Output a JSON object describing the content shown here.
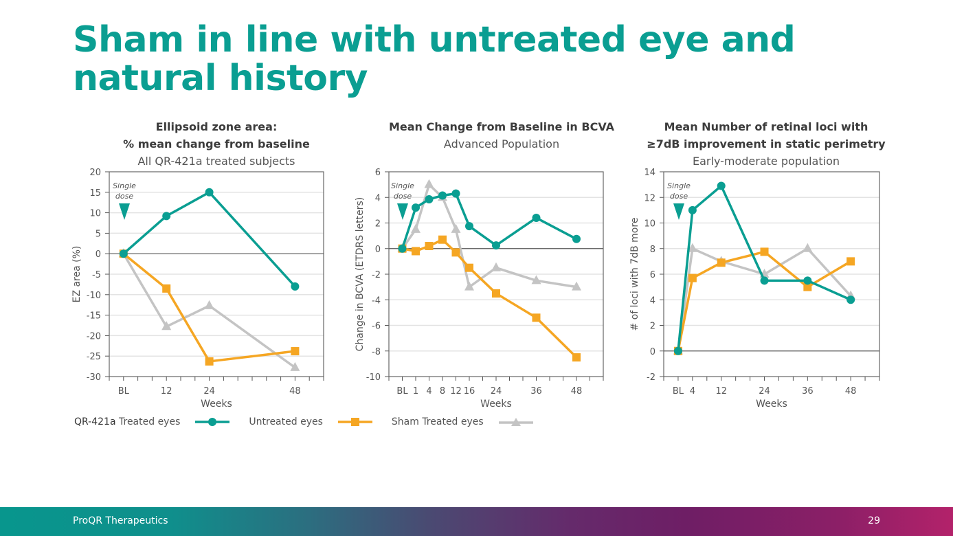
{
  "slide": {
    "title": "Sham in line with untreated eye and natural history",
    "footer_company": "ProQR Therapeutics",
    "page_number": "29",
    "colors": {
      "title": "#0a9e92",
      "treated": "#0a9e92",
      "untreated": "#f5a623",
      "sham": "#c4c4c4"
    }
  },
  "legend": [
    {
      "prefix": "QR-421a",
      "label": " Treated eyes",
      "series": "treated",
      "marker": "circle"
    },
    {
      "prefix": "",
      "label": "Untreated eyes",
      "series": "untreated",
      "marker": "square"
    },
    {
      "prefix": "",
      "label": "Sham Treated eyes",
      "series": "sham",
      "marker": "triangle"
    }
  ],
  "chart_data": [
    {
      "type": "line",
      "title": "Ellipsoid zone area:",
      "title2": "% mean change from baseline",
      "subtitle": "All QR-421a treated subjects",
      "xlabel": "Weeks",
      "ylabel": "EZ area (%)",
      "annotation": "Single dose",
      "ylim": [
        -30,
        20
      ],
      "yticks": [
        20,
        15,
        10,
        5,
        0,
        -5,
        -10,
        -15,
        -20,
        -25,
        -30
      ],
      "x_tick_labels": [
        "BL",
        "12",
        "24",
        "48"
      ],
      "x_tick_weeks": [
        0,
        12,
        24,
        48
      ],
      "x_weeks": [
        0,
        12,
        24,
        48
      ],
      "series": [
        {
          "name": "QR-421a Treated eyes",
          "key": "treated",
          "values": [
            0,
            9.2,
            15,
            -8
          ]
        },
        {
          "name": "Untreated eyes",
          "key": "untreated",
          "values": [
            0,
            -8.5,
            -26.3,
            -23.8
          ]
        },
        {
          "name": "Sham Treated eyes",
          "key": "sham",
          "values": [
            0,
            -17.8,
            -12.7,
            -27.8
          ]
        }
      ],
      "grid": true
    },
    {
      "type": "line",
      "title": "Mean Change from Baseline in BCVA",
      "title2": "",
      "subtitle": "Advanced Population",
      "xlabel": "Weeks",
      "ylabel": "Change in BCVA (ETDRS letters)",
      "annotation": "Single dose",
      "ylim": [
        -10,
        6
      ],
      "yticks": [
        6,
        4,
        2,
        0,
        -2,
        -4,
        -6,
        -8,
        -10
      ],
      "x_tick_labels": [
        "BL",
        "1",
        "4",
        "8",
        "12",
        "16",
        "24",
        "36",
        "48"
      ],
      "x_weeks": [
        0,
        1,
        4,
        8,
        12,
        16,
        24,
        36,
        48
      ],
      "series": [
        {
          "name": "QR-421a Treated eyes",
          "key": "treated",
          "values": [
            0,
            3.2,
            3.85,
            4.15,
            4.3,
            1.75,
            0.25,
            2.4,
            0.75
          ]
        },
        {
          "name": "Untreated eyes",
          "key": "untreated",
          "values": [
            0,
            -0.2,
            0.2,
            0.7,
            -0.3,
            -1.5,
            -3.5,
            -5.4,
            -8.5
          ]
        },
        {
          "name": "Sham Treated eyes",
          "key": "sham",
          "values": [
            0,
            1.5,
            5.0,
            4.0,
            1.5,
            -3.0,
            -1.5,
            -2.5,
            -3.0
          ]
        }
      ],
      "grid": true
    },
    {
      "type": "line",
      "title": "Mean Number of retinal loci with",
      "title2": "≥7dB improvement in static perimetry",
      "subtitle": "Early-moderate population",
      "xlabel": "Weeks",
      "ylabel": "# of loci with 7dB more",
      "annotation": "Single dose",
      "ylim": [
        -2,
        14
      ],
      "yticks": [
        14,
        12,
        10,
        8,
        6,
        4,
        2,
        0,
        -2
      ],
      "x_tick_labels": [
        "BL",
        "4",
        "12",
        "24",
        "36",
        "48"
      ],
      "x_weeks": [
        0,
        4,
        12,
        24,
        36,
        48
      ],
      "series": [
        {
          "name": "QR-421a Treated eyes",
          "key": "treated",
          "values": [
            0,
            11,
            12.9,
            5.5,
            5.5,
            4.0
          ]
        },
        {
          "name": "Untreated eyes",
          "key": "untreated",
          "values": [
            0,
            5.7,
            6.9,
            7.75,
            5.0,
            7.0
          ]
        },
        {
          "name": "Sham Treated eyes",
          "key": "sham",
          "values": [
            0,
            8.0,
            7.0,
            6.0,
            8.0,
            4.3
          ]
        }
      ],
      "grid": true
    }
  ]
}
